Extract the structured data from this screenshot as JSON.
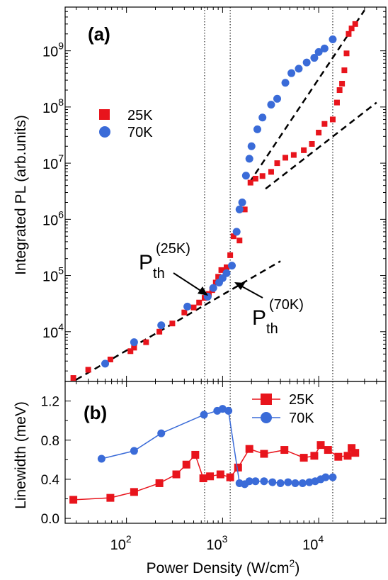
{
  "figure": {
    "xlabel": "Power Density (W/cm",
    "xlabel_sup": "2",
    "xlabel_end": ")",
    "x_ticks": [
      {
        "base": "10",
        "exp": "2"
      },
      {
        "base": "10",
        "exp": "3"
      },
      {
        "base": "10",
        "exp": "4"
      }
    ],
    "vlines_x": [
      650,
      1200,
      14000
    ],
    "dash_color": "#000000"
  },
  "chart_data": [
    {
      "id": "a",
      "panel_label": "(a)",
      "type": "scatter",
      "ylabel": "Integrated PL (arb.units)",
      "xscale": "log",
      "yscale": "log",
      "xlim": [
        23,
        50000
      ],
      "ylim": [
        1300,
        6000000000
      ],
      "grid": false,
      "legend": "left",
      "y_ticks": [
        {
          "base": "10",
          "exp": "4"
        },
        {
          "base": "10",
          "exp": "5"
        },
        {
          "base": "10",
          "exp": "6"
        },
        {
          "base": "10",
          "exp": "7"
        },
        {
          "base": "10",
          "exp": "8"
        },
        {
          "base": "10",
          "exp": "9"
        }
      ],
      "annotations": [
        {
          "base": "P",
          "sub": "th",
          "sup": "(25K)",
          "x": 700,
          "y": 50000
        },
        {
          "base": "P",
          "sub": "th",
          "sup": "(70K)",
          "x": 1250,
          "y": 115000
        }
      ],
      "fit_lines": [
        {
          "x": [
            30,
            4000
          ],
          "y": [
            1400,
            180000
          ]
        },
        {
          "x": [
            1900,
            30000
          ],
          "y": [
            4500000,
            5300000000
          ]
        },
        {
          "x": [
            2800,
            40000
          ],
          "y": [
            3500000,
            120000000
          ]
        }
      ],
      "series": [
        {
          "name": "25K",
          "color": "#e8141c",
          "marker": "square",
          "x": [
            28,
            40,
            68,
            110,
            120,
            160,
            220,
            300,
            400,
            500,
            570,
            650,
            720,
            780,
            850,
            900,
            970,
            1100,
            1200,
            1300,
            1400,
            1500,
            1700,
            1950,
            2200,
            2600,
            3200,
            3700,
            4500,
            5500,
            7000,
            8500,
            10000,
            11500,
            14000,
            15500,
            16500,
            17500,
            18500,
            19500,
            20500,
            22000,
            24000
          ],
          "y": [
            1500,
            2100,
            3200,
            4500,
            5200,
            6500,
            10000,
            14000,
            22000,
            27000,
            33000,
            40000,
            47000,
            55000,
            75000,
            95000,
            125000,
            140000,
            230000,
            500000,
            600000,
            420000,
            1500000,
            4500000,
            5300000,
            5900000,
            7000000,
            10000000,
            12500000,
            14000000,
            17000000,
            22000000,
            35000000,
            50000000,
            60000000,
            120000000,
            200000000,
            260000000,
            450000000,
            900000000,
            2000000000,
            2500000000,
            3000000000
          ]
        },
        {
          "name": "70K",
          "color": "#3a6bd8",
          "marker": "circle",
          "x": [
            60,
            120,
            230,
            430,
            700,
            800,
            920,
            1000,
            1100,
            1250,
            1400,
            1500,
            1600,
            1750,
            1900,
            2000,
            2300,
            2600,
            3200,
            3700,
            4500,
            5200,
            6200,
            7500,
            9000,
            10000,
            11500,
            14000
          ],
          "y": [
            2700,
            6500,
            13000,
            28000,
            42000,
            60000,
            75000,
            90000,
            110000,
            150000,
            600000,
            1500000,
            2000000,
            6000000,
            12000000,
            20000000,
            40000000,
            65000000,
            110000000,
            140000000,
            270000000,
            400000000,
            480000000,
            620000000,
            750000000,
            950000000,
            1100000000,
            1600000000
          ]
        }
      ]
    },
    {
      "id": "b",
      "panel_label": "(b)",
      "type": "line",
      "ylabel": "Linewidth (meV)",
      "xscale": "log",
      "xlim": [
        23,
        50000
      ],
      "ylim": [
        -0.05,
        1.4
      ],
      "grid": false,
      "legend": "top-right",
      "y_ticks": [
        "0.0",
        "0.4",
        "0.8",
        "1.2"
      ],
      "series": [
        {
          "name": "25K",
          "color": "#e8141c",
          "marker": "square",
          "x": [
            28,
            68,
            120,
            220,
            330,
            420,
            520,
            630,
            740,
            950,
            1200,
            1450,
            1900,
            2700,
            4400,
            7000,
            9000,
            10500,
            12500,
            16000,
            20000,
            22000,
            24000
          ],
          "y": [
            0.19,
            0.21,
            0.27,
            0.36,
            0.45,
            0.55,
            0.65,
            0.41,
            0.43,
            0.45,
            0.42,
            0.52,
            0.71,
            0.66,
            0.7,
            0.62,
            0.64,
            0.75,
            0.7,
            0.63,
            0.64,
            0.72,
            0.67
          ]
        },
        {
          "name": "70K",
          "color": "#3a6bd8",
          "marker": "circle",
          "x": [
            55,
            120,
            230,
            640,
            880,
            1000,
            1150,
            1500,
            1700,
            1900,
            2200,
            2700,
            3300,
            4000,
            4800,
            5700,
            6800,
            8000,
            9200,
            10500,
            11800,
            14000
          ],
          "y": [
            0.61,
            0.69,
            0.87,
            1.06,
            1.1,
            1.12,
            1.1,
            0.36,
            0.35,
            0.38,
            0.38,
            0.38,
            0.37,
            0.36,
            0.37,
            0.36,
            0.36,
            0.37,
            0.38,
            0.4,
            0.42,
            0.42
          ]
        }
      ]
    }
  ]
}
